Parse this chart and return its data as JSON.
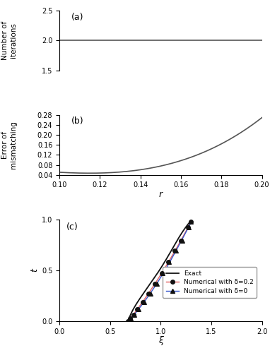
{
  "panel_a": {
    "ylabel": "Number of\niterations",
    "xlim": [
      0.1,
      0.2
    ],
    "ylim": [
      1.5,
      2.5
    ],
    "yticks": [
      1.5,
      2.0,
      2.5
    ],
    "xticks": [],
    "y_constant": 2.0,
    "label": "(a)"
  },
  "panel_b": {
    "xlabel": "r",
    "ylabel": "Error of\nmismatching",
    "xlim": [
      0.1,
      0.2
    ],
    "ylim": [
      0.04,
      0.28
    ],
    "yticks": [
      0.04,
      0.08,
      0.12,
      0.16,
      0.2,
      0.24,
      0.28
    ],
    "xticks": [
      0.1,
      0.12,
      0.14,
      0.16,
      0.18,
      0.2
    ],
    "label": "(b)",
    "r0": 0.115,
    "a": 18.0,
    "b": 150.0,
    "c": 0.047
  },
  "panel_c": {
    "xlabel": "ξ",
    "ylabel": "t",
    "xlim": [
      0.0,
      2.0
    ],
    "ylim": [
      0.0,
      1.0
    ],
    "xticks": [
      0.0,
      0.5,
      1.0,
      1.5,
      2.0
    ],
    "yticks": [
      0.0,
      0.5,
      1.0
    ],
    "label": "(c)",
    "exact_color": "#111111",
    "num_delta02_color": "#e06060",
    "num_delta0_color": "#3355cc",
    "exact_xi": [
      0.68,
      0.685,
      0.695,
      0.71,
      0.73,
      0.76,
      0.8,
      0.85,
      0.91,
      0.98,
      1.055,
      1.135,
      1.23,
      1.29
    ],
    "exact_t": [
      0.0,
      0.02,
      0.045,
      0.08,
      0.12,
      0.17,
      0.23,
      0.3,
      0.385,
      0.49,
      0.61,
      0.74,
      0.9,
      0.975
    ],
    "num02_xi": [
      0.68,
      0.7,
      0.73,
      0.77,
      0.82,
      0.88,
      0.945,
      1.01,
      1.075,
      1.14,
      1.2,
      1.27,
      1.3
    ],
    "num02_t": [
      0.0,
      0.025,
      0.065,
      0.12,
      0.19,
      0.27,
      0.37,
      0.47,
      0.58,
      0.69,
      0.79,
      0.92,
      0.975
    ],
    "num0_xi": [
      0.68,
      0.705,
      0.74,
      0.785,
      0.84,
      0.9,
      0.96,
      1.02,
      1.085,
      1.15,
      1.215,
      1.275,
      1.3
    ],
    "num0_t": [
      0.0,
      0.025,
      0.065,
      0.12,
      0.19,
      0.27,
      0.37,
      0.47,
      0.58,
      0.69,
      0.79,
      0.92,
      0.975
    ],
    "legend_entries": [
      "Exact",
      "Numerical with δ=0.2",
      "Numerical with δ=0"
    ]
  },
  "figure_background": "#ffffff",
  "line_color": "#555555"
}
